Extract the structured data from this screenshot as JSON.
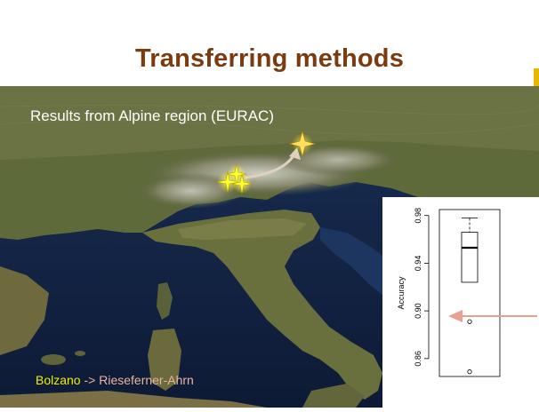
{
  "slide": {
    "title": "Transferring methods",
    "subtitle": "Results from Alpine region (EURAC)",
    "source_location": "Bolzano",
    "transfer_arrow": "->",
    "target_location": "Rieseferner-Ahrn"
  },
  "colors": {
    "title": "#7a3b10",
    "accent": "#e6b800",
    "bolzano_text": "#f0f000",
    "target_text": "#e8b4a0",
    "pointer_arrow": "#e8a090"
  },
  "icons": [
    "star-marker-icon",
    "curved-arrow-icon",
    "pointer-arrow-icon"
  ],
  "chart_data": {
    "type": "boxplot",
    "ylabel": "Accuracy",
    "yticks": [
      "0.86",
      "0.90",
      "0.94",
      "0.98"
    ],
    "ylim": [
      0.845,
      0.985
    ],
    "box": {
      "whisker_high": 0.978,
      "q3": 0.966,
      "median": 0.953,
      "q1": 0.924,
      "whisker_low": 0.924
    },
    "outliers": [
      0.891,
      0.849
    ],
    "highlighted_outlier": 0.891
  }
}
